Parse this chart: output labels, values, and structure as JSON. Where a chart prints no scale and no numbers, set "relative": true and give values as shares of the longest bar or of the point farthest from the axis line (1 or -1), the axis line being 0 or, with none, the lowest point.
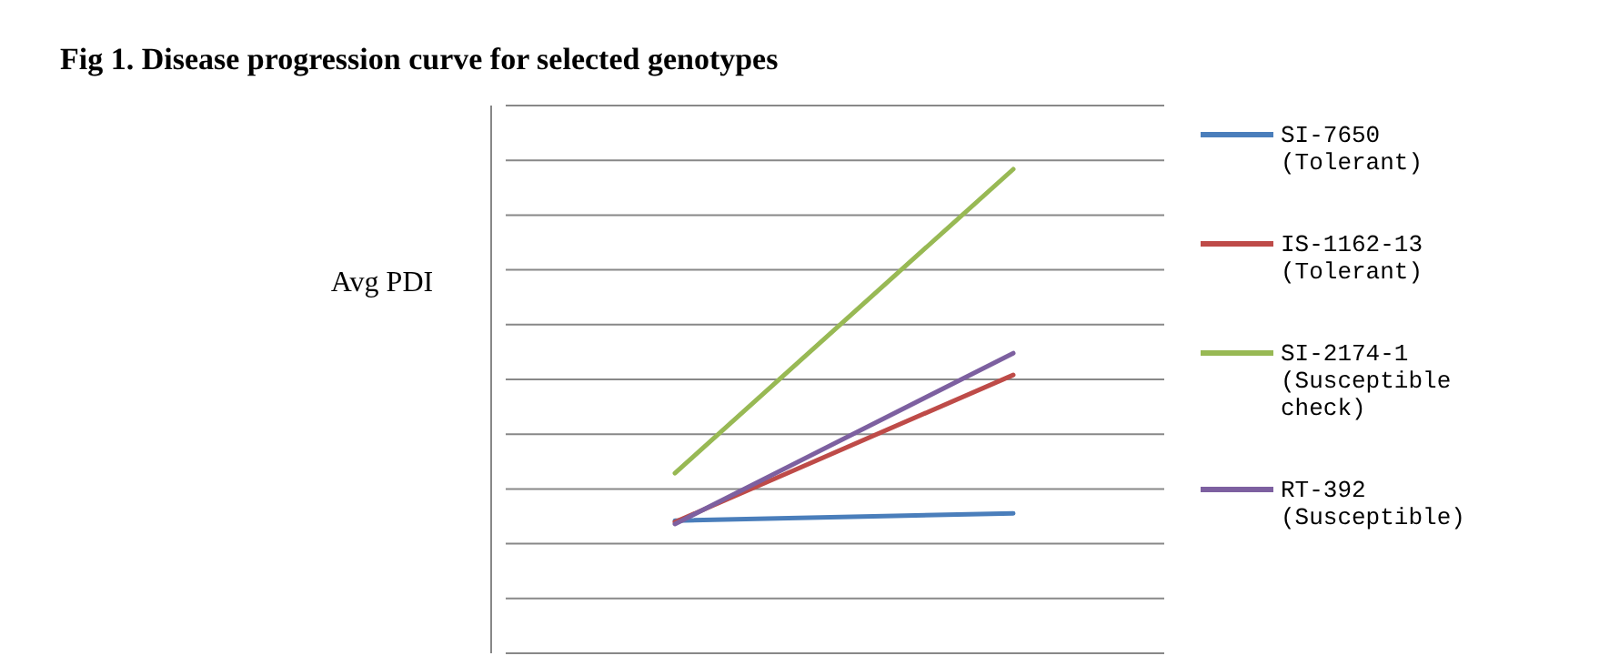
{
  "chart_data": {
    "type": "line",
    "title": "Fig 1. Disease progression curve for selected genotypes",
    "ylabel": "Avg PDI",
    "relative": true,
    "categories": [
      null,
      null
    ],
    "grid": "y",
    "legend": "right",
    "marker": "none",
    "line_style": "solid",
    "series": [
      {
        "name": "SI-7650 (Tolerant)",
        "color": "#4a7ebb",
        "values": [
          0.274,
          0.289
        ]
      },
      {
        "name": "IS-1162-13 (Tolerant)",
        "color": "#be4b48",
        "values": [
          0.271,
          0.575
        ]
      },
      {
        "name": "SI-2174-1 (Susceptible check)",
        "color": "#98b954",
        "values": [
          0.372,
          1
        ]
      },
      {
        "name": "RT-392 (Susceptible)",
        "color": "#7d60a0",
        "values": [
          0.267,
          0.62
        ]
      }
    ]
  }
}
